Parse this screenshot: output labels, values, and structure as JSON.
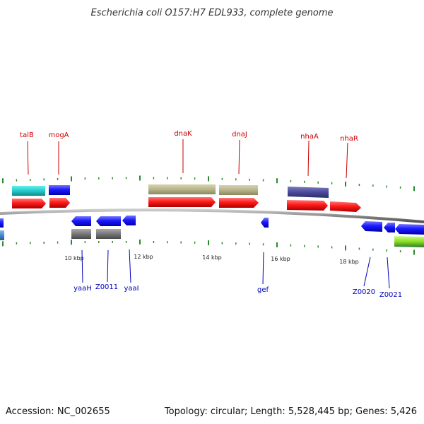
{
  "title": "Escherichia coli O157:H7 EDL933, complete genome",
  "footer": {
    "accession": "Accession: NC_002655",
    "summary": "Topology: circular; Length: 5,528,445 bp; Genes: 5,426"
  },
  "colors": {
    "red": "#ff1a1a",
    "blue": "#1a1aff",
    "cyan": "#22cccc",
    "olive": "#b8b48a",
    "purple": "#4a4a99",
    "gray": "#777777",
    "green": "#88dd22",
    "steel": "#4a86c8",
    "tick": "#2a8a2a",
    "backbone": "#888888"
  },
  "scale_labels": [
    "10 kbp",
    "12 kbp",
    "14 kbp",
    "16 kbp",
    "18 kbp"
  ],
  "labels_top": [
    "talB",
    "mogA",
    "dnaK",
    "dnaJ",
    "nhaA",
    "nhaR"
  ],
  "labels_bottom": [
    "yaaH",
    "Z0011",
    "yaaI",
    "gef",
    "Z0020",
    "Z0021"
  ]
}
